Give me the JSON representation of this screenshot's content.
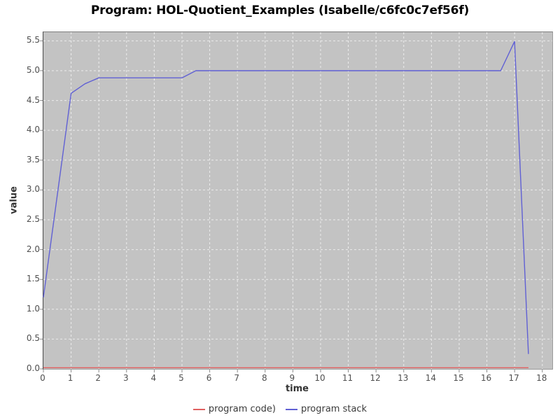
{
  "title": "Program: HOL-Quotient_Examples (Isabelle/c6fc0c7ef56f)",
  "chart_data": {
    "type": "line",
    "title": "Program: HOL-Quotient_Examples (Isabelle/c6fc0c7ef56f)",
    "xlabel": "time",
    "ylabel": "value",
    "xlim": [
      0,
      18.36
    ],
    "ylim": [
      0,
      5.645
    ],
    "grid": true,
    "legend_position": "bottom",
    "plot_background": "#c3c3c3",
    "grid_color": "#ececec",
    "x_tick_values": [
      0,
      1,
      2,
      3,
      4,
      5,
      6,
      7,
      8,
      9,
      10,
      11,
      12,
      13,
      14,
      15,
      16,
      17,
      18
    ],
    "x_tick_labels": [
      "0",
      "1",
      "2",
      "3",
      "4",
      "5",
      "6",
      "7",
      "8",
      "9",
      "10",
      "11",
      "12",
      "13",
      "14",
      "15",
      "16",
      "17",
      "18"
    ],
    "y_tick_values": [
      0.0,
      0.5,
      1.0,
      1.5,
      2.0,
      2.5,
      3.0,
      3.5,
      4.0,
      4.5,
      5.0,
      5.5
    ],
    "y_tick_labels": [
      "0.0",
      "0.5",
      "1.0",
      "1.5",
      "2.0",
      "2.5",
      "3.0",
      "3.5",
      "4.0",
      "4.5",
      "5.0",
      "5.5"
    ],
    "x_gridline_values": [
      1,
      2,
      3,
      4,
      5,
      6,
      7,
      8,
      9,
      10,
      11,
      12,
      13,
      14,
      15,
      16,
      17,
      18
    ],
    "y_gridline_values": [
      0.5,
      1.0,
      1.5,
      2.0,
      2.5,
      3.0,
      3.5,
      4.0,
      4.5,
      5.0,
      5.5
    ],
    "series": [
      {
        "name": "program code)",
        "color": "#e06060",
        "points": [
          [
            0,
            0.02
          ],
          [
            17.5,
            0.02
          ]
        ]
      },
      {
        "name": "program stack",
        "color": "#6060d4",
        "points": [
          [
            0,
            1.2
          ],
          [
            1,
            4.62
          ],
          [
            1.5,
            4.78
          ],
          [
            2,
            4.88
          ],
          [
            3,
            4.88
          ],
          [
            4,
            4.88
          ],
          [
            5,
            4.88
          ],
          [
            5.5,
            5.0
          ],
          [
            6,
            5.0
          ],
          [
            7,
            5.0
          ],
          [
            8,
            5.0
          ],
          [
            9,
            5.0
          ],
          [
            10,
            5.0
          ],
          [
            11,
            5.0
          ],
          [
            12,
            5.0
          ],
          [
            13,
            5.0
          ],
          [
            14,
            5.0
          ],
          [
            15,
            5.0
          ],
          [
            16,
            5.0
          ],
          [
            16.5,
            5.0
          ],
          [
            17,
            5.49
          ],
          [
            17.5,
            0.25
          ]
        ]
      }
    ]
  }
}
